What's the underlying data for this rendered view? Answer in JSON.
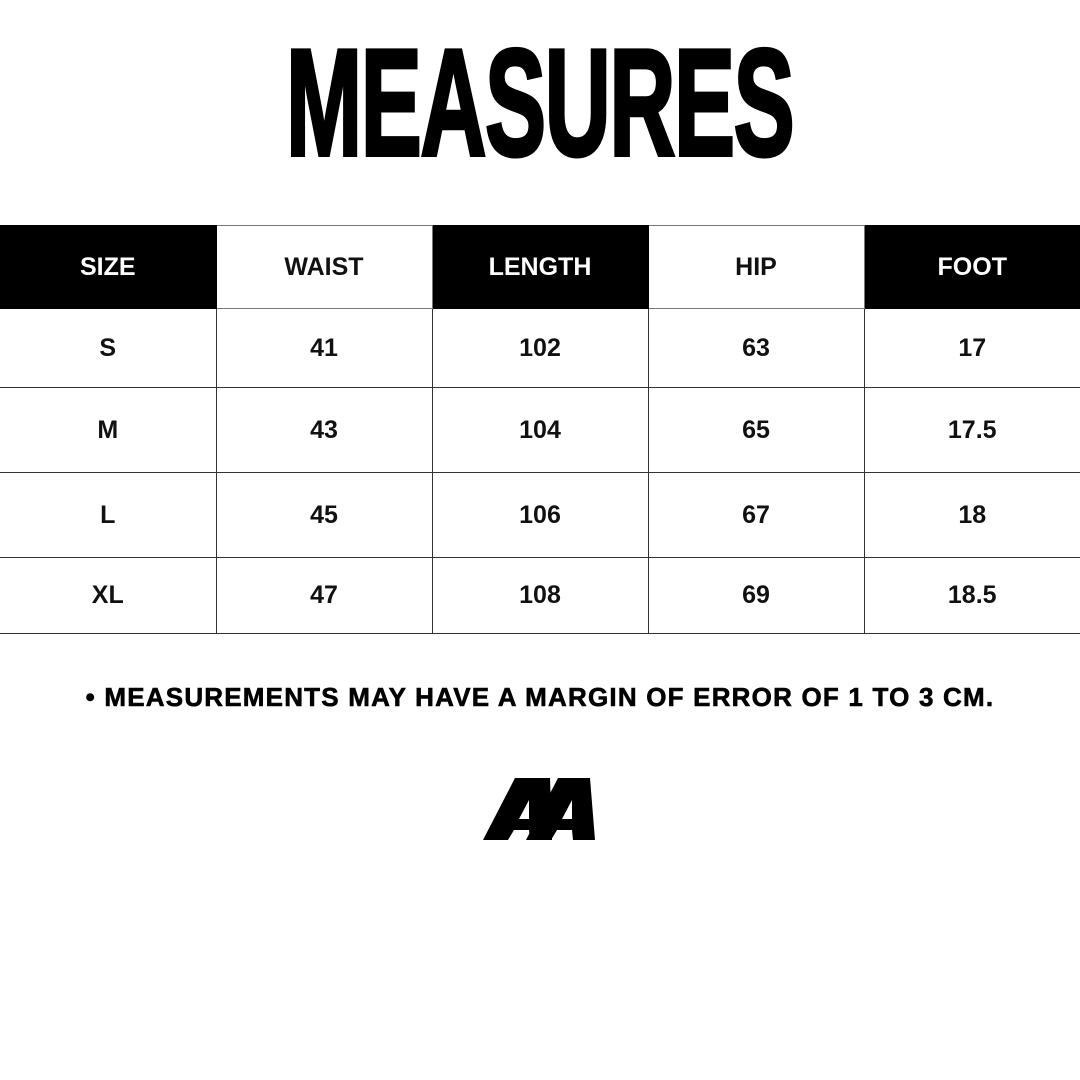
{
  "title": "MEASURES",
  "table": {
    "headers": [
      "SIZE",
      "WAIST",
      "LENGTH",
      "HIP",
      "FOOT"
    ],
    "rows": [
      [
        "S",
        "41",
        "102",
        "63",
        "17"
      ],
      [
        "M",
        "43",
        "104",
        "65",
        "17.5"
      ],
      [
        "L",
        "45",
        "106",
        "67",
        "18"
      ],
      [
        "XL",
        "47",
        "108",
        "69",
        "18.5"
      ]
    ]
  },
  "note": "• MEASUREMENTS MAY HAVE A MARGIN OF ERROR OF 1 TO 3 CM.",
  "logo": {
    "text": "AA",
    "icon": "aa-logo"
  },
  "colors": {
    "header_dark": "#000000",
    "background": "#ffffff"
  }
}
